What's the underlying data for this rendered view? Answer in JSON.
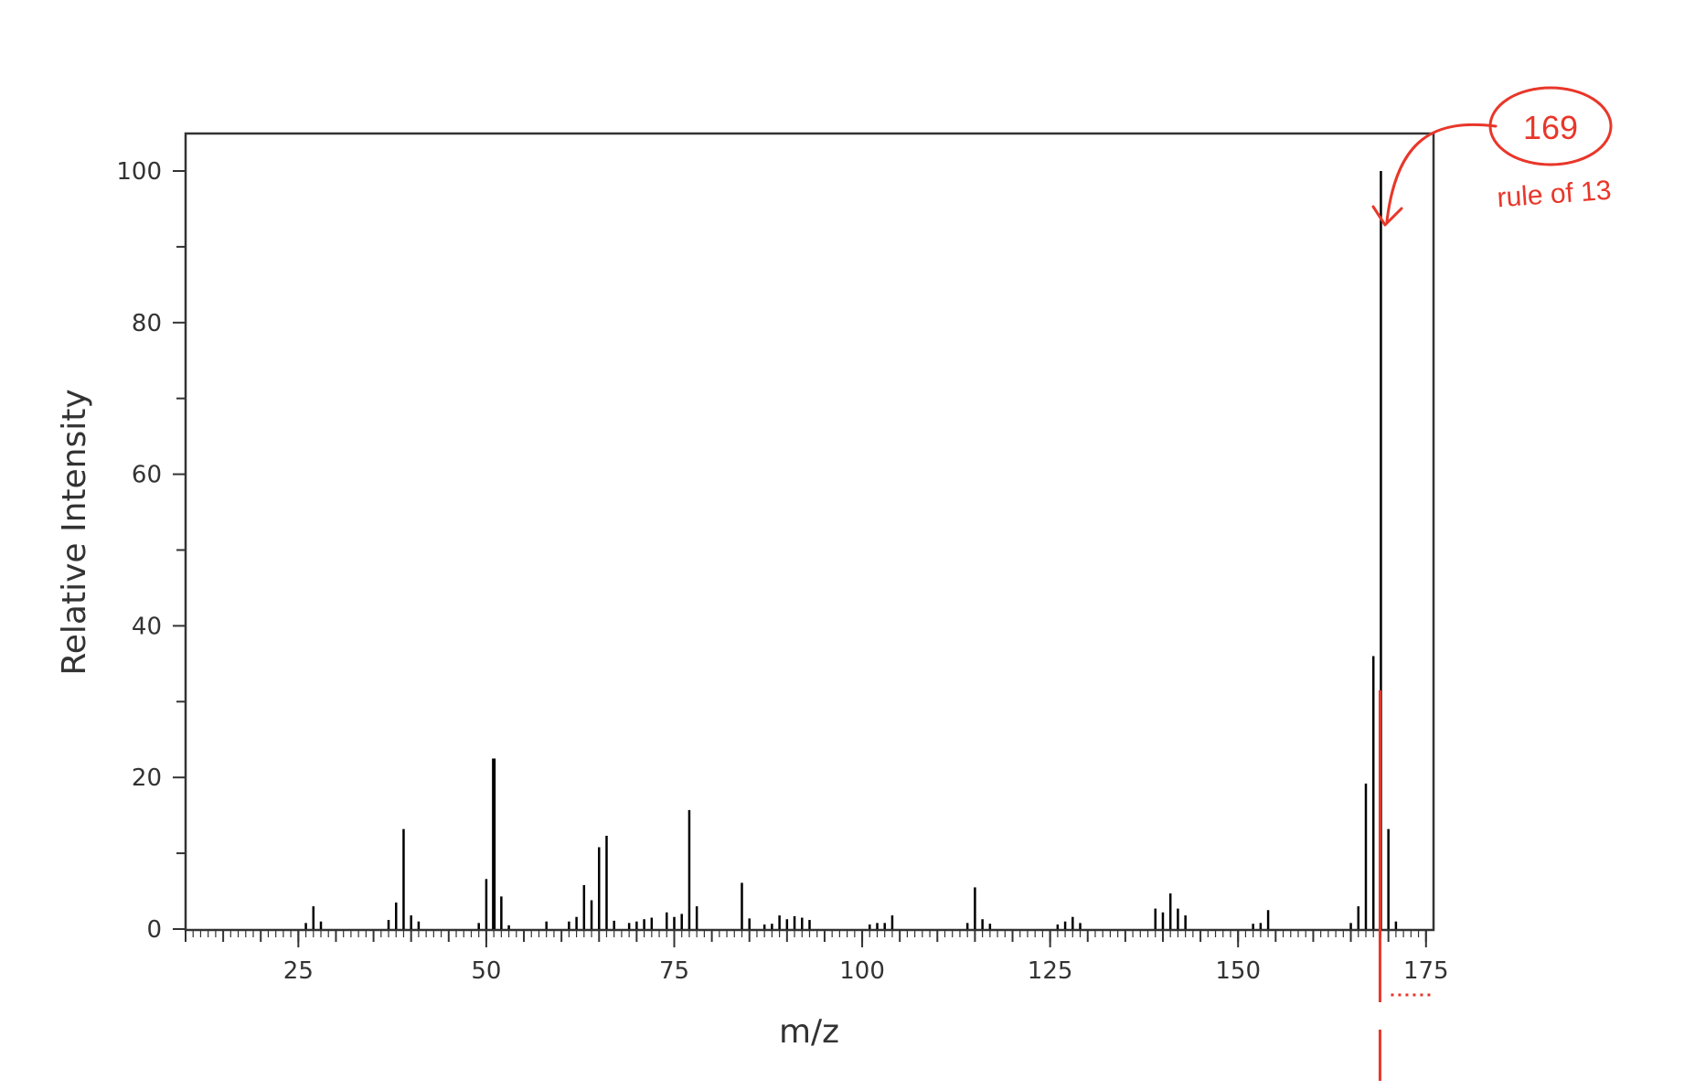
{
  "chart_data": {
    "type": "bar",
    "subtype": "mass-spectrum",
    "title": "",
    "xlabel": "m/z",
    "ylabel": "Relative Intensity",
    "xlim": [
      10,
      176
    ],
    "ylim": [
      0,
      105
    ],
    "x_ticks": [
      25,
      50,
      75,
      100,
      125,
      150,
      175
    ],
    "y_ticks": [
      0,
      20,
      40,
      60,
      80,
      100
    ],
    "grid": false,
    "legend": "none",
    "colors": {
      "bars": "#000000",
      "axes": "#333333",
      "annotation": "#e8372a"
    },
    "peaks": [
      {
        "mz": 26,
        "intensity": 0.8
      },
      {
        "mz": 27,
        "intensity": 3
      },
      {
        "mz": 28,
        "intensity": 1
      },
      {
        "mz": 37,
        "intensity": 1.2
      },
      {
        "mz": 38,
        "intensity": 3.5
      },
      {
        "mz": 39,
        "intensity": 13.2
      },
      {
        "mz": 40,
        "intensity": 1.8
      },
      {
        "mz": 41,
        "intensity": 1
      },
      {
        "mz": 49,
        "intensity": 0.8
      },
      {
        "mz": 50,
        "intensity": 6.6
      },
      {
        "mz": 51,
        "intensity": 22.5
      },
      {
        "mz": 52,
        "intensity": 4.3
      },
      {
        "mz": 53,
        "intensity": 0.5
      },
      {
        "mz": 58,
        "intensity": 1
      },
      {
        "mz": 61,
        "intensity": 1
      },
      {
        "mz": 62,
        "intensity": 1.6
      },
      {
        "mz": 63,
        "intensity": 5.8
      },
      {
        "mz": 64,
        "intensity": 3.8
      },
      {
        "mz": 65,
        "intensity": 10.8
      },
      {
        "mz": 66,
        "intensity": 12.3
      },
      {
        "mz": 67,
        "intensity": 1.1
      },
      {
        "mz": 69,
        "intensity": 0.8
      },
      {
        "mz": 70,
        "intensity": 1
      },
      {
        "mz": 71,
        "intensity": 1.3
      },
      {
        "mz": 72,
        "intensity": 1.5
      },
      {
        "mz": 74,
        "intensity": 2.2
      },
      {
        "mz": 75,
        "intensity": 1.6
      },
      {
        "mz": 76,
        "intensity": 2
      },
      {
        "mz": 77,
        "intensity": 15.7
      },
      {
        "mz": 78,
        "intensity": 3
      },
      {
        "mz": 84,
        "intensity": 6.1
      },
      {
        "mz": 85,
        "intensity": 1.4
      },
      {
        "mz": 87,
        "intensity": 0.6
      },
      {
        "mz": 88,
        "intensity": 0.7
      },
      {
        "mz": 89,
        "intensity": 1.8
      },
      {
        "mz": 90,
        "intensity": 1.3
      },
      {
        "mz": 91,
        "intensity": 1.7
      },
      {
        "mz": 92,
        "intensity": 1.5
      },
      {
        "mz": 93,
        "intensity": 1.2
      },
      {
        "mz": 101,
        "intensity": 0.6
      },
      {
        "mz": 102,
        "intensity": 0.8
      },
      {
        "mz": 103,
        "intensity": 0.8
      },
      {
        "mz": 104,
        "intensity": 1.8
      },
      {
        "mz": 114,
        "intensity": 0.8
      },
      {
        "mz": 115,
        "intensity": 5.5
      },
      {
        "mz": 116,
        "intensity": 1.3
      },
      {
        "mz": 117,
        "intensity": 0.7
      },
      {
        "mz": 126,
        "intensity": 0.6
      },
      {
        "mz": 127,
        "intensity": 1
      },
      {
        "mz": 128,
        "intensity": 1.6
      },
      {
        "mz": 129,
        "intensity": 0.8
      },
      {
        "mz": 139,
        "intensity": 2.7
      },
      {
        "mz": 140,
        "intensity": 2.2
      },
      {
        "mz": 141,
        "intensity": 4.7
      },
      {
        "mz": 142,
        "intensity": 2.7
      },
      {
        "mz": 143,
        "intensity": 1.8
      },
      {
        "mz": 152,
        "intensity": 0.7
      },
      {
        "mz": 153,
        "intensity": 0.8
      },
      {
        "mz": 154,
        "intensity": 2.5
      },
      {
        "mz": 165,
        "intensity": 0.8
      },
      {
        "mz": 166,
        "intensity": 3
      },
      {
        "mz": 167,
        "intensity": 19.2
      },
      {
        "mz": 168,
        "intensity": 36
      },
      {
        "mz": 169,
        "intensity": 100
      },
      {
        "mz": 170,
        "intensity": 13.2
      },
      {
        "mz": 171,
        "intensity": 1
      }
    ],
    "annotations": [
      {
        "text": "169",
        "shape": "circled",
        "points_to_mz": 169,
        "color": "#e8372a"
      },
      {
        "text": "rule of 13",
        "color": "#e8372a"
      }
    ],
    "annotation_marker_mz": 169
  }
}
